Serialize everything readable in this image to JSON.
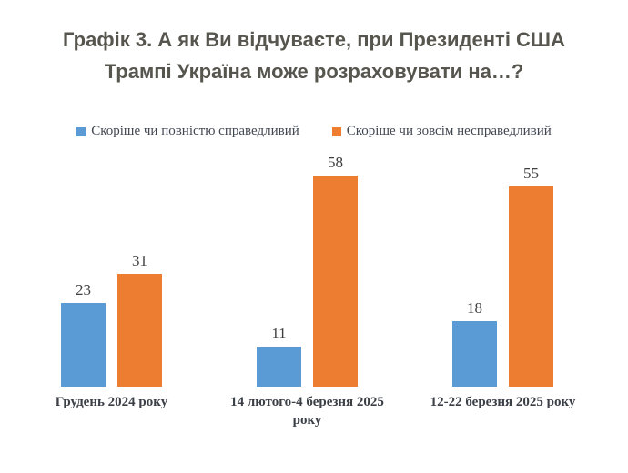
{
  "title": "Графік 3. А як Ви відчуваєте, при Президенті США Трампі Україна може розраховувати на…?",
  "colors": {
    "background": "#FFFFFF",
    "title_text": "#56554E",
    "value_label_text": "#3F3F3F",
    "category_text": "#3B3F46",
    "legend_text": "#414752",
    "series_blue": "#5B9BD5",
    "series_orange": "#ED7D31"
  },
  "chart_data": {
    "type": "bar",
    "title": "Графік 3. А як Ви відчуваєте, при Президенті США Трампі Україна може розраховувати на…?",
    "categories": [
      "Грудень 2024 року",
      "14 лютого-4 березня 2025 року",
      "12-22 березня 2025 року"
    ],
    "series": [
      {
        "name": "Скоріше чи повністю справедливий",
        "color": "#5B9BD5",
        "values": [
          23,
          11,
          18
        ]
      },
      {
        "name": "Скоріше чи зовсім несправедливий",
        "color": "#ED7D31",
        "values": [
          31,
          58,
          55
        ]
      }
    ],
    "xlabel": "",
    "ylabel": "",
    "ylim": [
      0,
      60
    ],
    "grid": false,
    "axes_visible": false,
    "data_labels": true,
    "legend_position": "top"
  }
}
